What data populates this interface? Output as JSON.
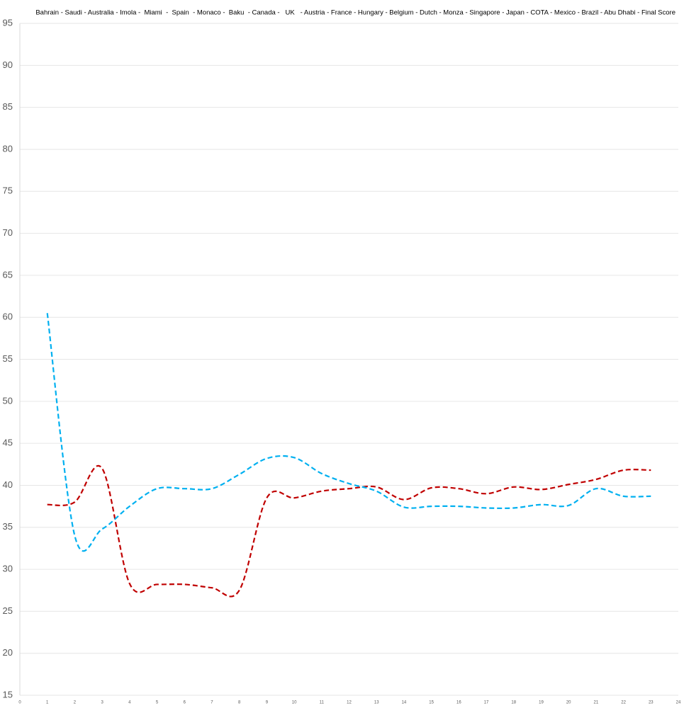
{
  "chart_data": {
    "type": "line",
    "title": "Bahrain - Saudi - Australia - Imola -  Miami  -  Spain  - Monaco -  Baku  - Canada -   UK   - Austria - France - Hungary - Belgium - Dutch - Monza - Singapore - Japan - COTA - Mexico - Brazil - Abu Dhabi - Final Score",
    "x": [
      1,
      2,
      3,
      4,
      5,
      6,
      7,
      8,
      9,
      10,
      11,
      12,
      13,
      14,
      15,
      16,
      17,
      18,
      19,
      20,
      21,
      22,
      23
    ],
    "series": [
      {
        "color": "#c00000",
        "values": [
          37.7,
          38,
          42,
          28.3,
          28.2,
          28.2,
          27.8,
          27.5,
          38.5,
          38.5,
          39.3,
          39.6,
          39.8,
          38.3,
          39.7,
          39.6,
          39,
          39.8,
          39.5,
          40.1,
          40.7,
          41.8,
          41.8
        ]
      },
      {
        "color": "#00b0f0",
        "values": [
          60.5,
          34,
          34.8,
          37.5,
          39.6,
          39.6,
          39.6,
          41.3,
          43.2,
          43.3,
          41.4,
          40.2,
          39.3,
          37.4,
          37.5,
          37.5,
          37.3,
          37.3,
          37.7,
          37.6,
          39.6,
          38.7,
          38.7
        ]
      }
    ],
    "xlim": [
      0,
      24
    ],
    "xticks": [
      0,
      1,
      2,
      3,
      4,
      5,
      6,
      7,
      8,
      9,
      10,
      11,
      12,
      13,
      14,
      15,
      16,
      17,
      18,
      19,
      20,
      21,
      22,
      23,
      24
    ],
    "ylim": [
      15,
      95
    ],
    "yticks": [
      15,
      20,
      25,
      30,
      35,
      40,
      45,
      50,
      55,
      60,
      65,
      70,
      75,
      80,
      85,
      90,
      95
    ],
    "grid": true,
    "dashed": true
  }
}
